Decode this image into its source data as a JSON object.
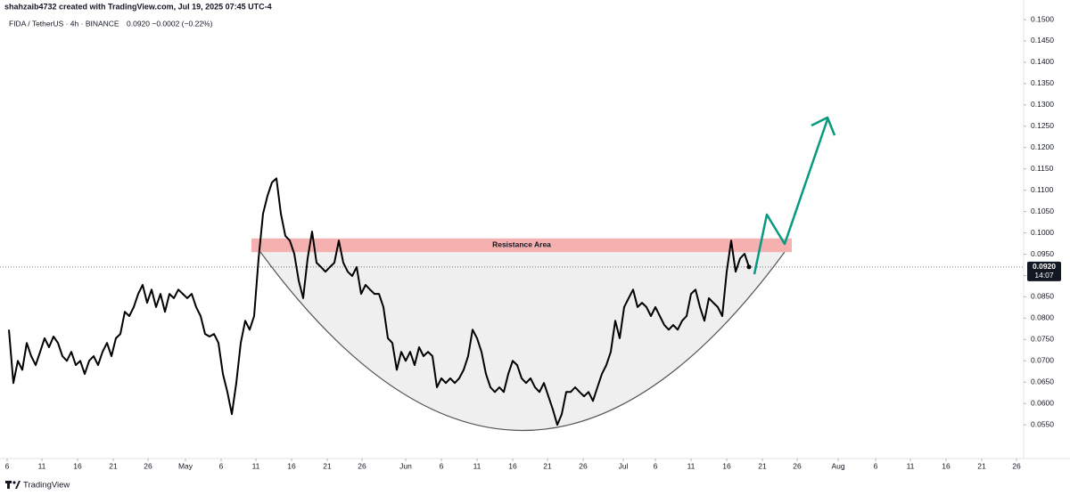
{
  "header": {
    "credit": "shahzaib4732 created with TradingView.com, Jul 19, 2025 07:45 UTC-4",
    "symbol": "FIDA / TetherUS · 4h · BINANCE",
    "quote": "0.0920 −0.0002 (−0.22%)"
  },
  "footer": {
    "brand": "TradingView"
  },
  "chart_data": {
    "type": "line",
    "series": [
      {
        "name": "FIDA / TetherUS",
        "color": "#000000",
        "values": [
          0.0773,
          0.0648,
          0.07,
          0.0679,
          0.0742,
          0.0711,
          0.069,
          0.0721,
          0.0753,
          0.0732,
          0.0757,
          0.0742,
          0.0711,
          0.07,
          0.0721,
          0.069,
          0.07,
          0.0669,
          0.07,
          0.0711,
          0.069,
          0.0721,
          0.0742,
          0.0711,
          0.0753,
          0.0763,
          0.0815,
          0.0805,
          0.0826,
          0.0857,
          0.0878,
          0.0836,
          0.0867,
          0.0826,
          0.0857,
          0.0815,
          0.0857,
          0.0847,
          0.0867,
          0.0857,
          0.0847,
          0.0857,
          0.0826,
          0.0805,
          0.0763,
          0.0757,
          0.0763,
          0.0742,
          0.0669,
          0.0627,
          0.0575,
          0.0648,
          0.0742,
          0.0794,
          0.0773,
          0.0805,
          0.094,
          0.1045,
          0.1087,
          0.1118,
          0.1128,
          0.1045,
          0.0993,
          0.0982,
          0.0951,
          0.0888,
          0.0847,
          0.094,
          0.1003,
          0.093,
          0.092,
          0.0909,
          0.092,
          0.093,
          0.0982,
          0.093,
          0.0909,
          0.0899,
          0.092,
          0.0857,
          0.0878,
          0.0867,
          0.0857,
          0.0857,
          0.0826,
          0.0753,
          0.0742,
          0.0679,
          0.0721,
          0.07,
          0.0721,
          0.069,
          0.0732,
          0.0711,
          0.0721,
          0.0711,
          0.0638,
          0.0659,
          0.0648,
          0.0659,
          0.0648,
          0.0659,
          0.0679,
          0.0711,
          0.0773,
          0.0753,
          0.0721,
          0.0669,
          0.0638,
          0.0627,
          0.0638,
          0.0627,
          0.0669,
          0.07,
          0.069,
          0.0659,
          0.0648,
          0.0659,
          0.0638,
          0.0627,
          0.0648,
          0.0617,
          0.0586,
          0.055,
          0.0575,
          0.0627,
          0.0627,
          0.0638,
          0.0627,
          0.0617,
          0.0627,
          0.0606,
          0.0638,
          0.0669,
          0.069,
          0.0721,
          0.0794,
          0.0753,
          0.0826,
          0.0847,
          0.0867,
          0.0826,
          0.0836,
          0.0826,
          0.0805,
          0.0826,
          0.0805,
          0.0784,
          0.0773,
          0.0784,
          0.0773,
          0.0794,
          0.0805,
          0.0857,
          0.0867,
          0.0826,
          0.0794,
          0.0847,
          0.0836,
          0.0826,
          0.0805,
          0.0909,
          0.0982,
          0.0909,
          0.094,
          0.0951,
          0.092
        ]
      }
    ],
    "xlim": [
      -2,
      227.6
    ],
    "xticks": [
      {
        "value": -0.4,
        "label": "6"
      },
      {
        "value": 7.4,
        "label": "11"
      },
      {
        "value": 15.4,
        "label": "16"
      },
      {
        "value": 23.4,
        "label": "21"
      },
      {
        "value": 31.2,
        "label": "26"
      },
      {
        "value": 39.6,
        "label": "May"
      },
      {
        "value": 47.6,
        "label": "6"
      },
      {
        "value": 55.4,
        "label": "11"
      },
      {
        "value": 63.4,
        "label": "16"
      },
      {
        "value": 71.4,
        "label": "21"
      },
      {
        "value": 79.2,
        "label": "26"
      },
      {
        "value": 89,
        "label": "Jun"
      },
      {
        "value": 97,
        "label": "6"
      },
      {
        "value": 105,
        "label": "11"
      },
      {
        "value": 113,
        "label": "16"
      },
      {
        "value": 120.8,
        "label": "21"
      },
      {
        "value": 128.8,
        "label": "26"
      },
      {
        "value": 137.8,
        "label": "Jul"
      },
      {
        "value": 145,
        "label": "6"
      },
      {
        "value": 153,
        "label": "11"
      },
      {
        "value": 161,
        "label": "16"
      },
      {
        "value": 169,
        "label": "21"
      },
      {
        "value": 176.8,
        "label": "26"
      },
      {
        "value": 186,
        "label": "Aug"
      },
      {
        "value": 194.4,
        "label": "6"
      },
      {
        "value": 202.2,
        "label": "11"
      },
      {
        "value": 210.2,
        "label": "16"
      },
      {
        "value": 218.2,
        "label": "21"
      },
      {
        "value": 226,
        "label": "26"
      }
    ],
    "ylim": [
      0.0471,
      0.1546
    ],
    "yticks": [
      {
        "value": 0.055,
        "label": "0.0550"
      },
      {
        "value": 0.06,
        "label": "0.0600"
      },
      {
        "value": 0.065,
        "label": "0.0650"
      },
      {
        "value": 0.07,
        "label": "0.0700"
      },
      {
        "value": 0.075,
        "label": "0.0750"
      },
      {
        "value": 0.08,
        "label": "0.0800"
      },
      {
        "value": 0.085,
        "label": "0.0850"
      },
      {
        "value": 0.09,
        "label": "0.0900"
      },
      {
        "value": 0.095,
        "label": "0.0950"
      },
      {
        "value": 0.1,
        "label": "0.1000"
      },
      {
        "value": 0.105,
        "label": "0.1050"
      },
      {
        "value": 0.11,
        "label": "0.1100"
      },
      {
        "value": 0.115,
        "label": "0.1150"
      },
      {
        "value": 0.12,
        "label": "0.1200"
      },
      {
        "value": 0.125,
        "label": "0.1250"
      },
      {
        "value": 0.13,
        "label": "0.1300"
      },
      {
        "value": 0.135,
        "label": "0.1350"
      },
      {
        "value": 0.14,
        "label": "0.1400"
      },
      {
        "value": 0.145,
        "label": "0.1450"
      },
      {
        "value": 0.15,
        "label": "0.1500"
      }
    ],
    "grid": false,
    "current_price": {
      "value": 0.092,
      "label": "0.0920",
      "countdown": "14:07"
    },
    "resistance": {
      "label": "Resistance Area",
      "range": [
        0.0955,
        0.0987
      ],
      "x_range": [
        54.4,
        175.6
      ],
      "color": "#f4a7a7"
    }
  }
}
